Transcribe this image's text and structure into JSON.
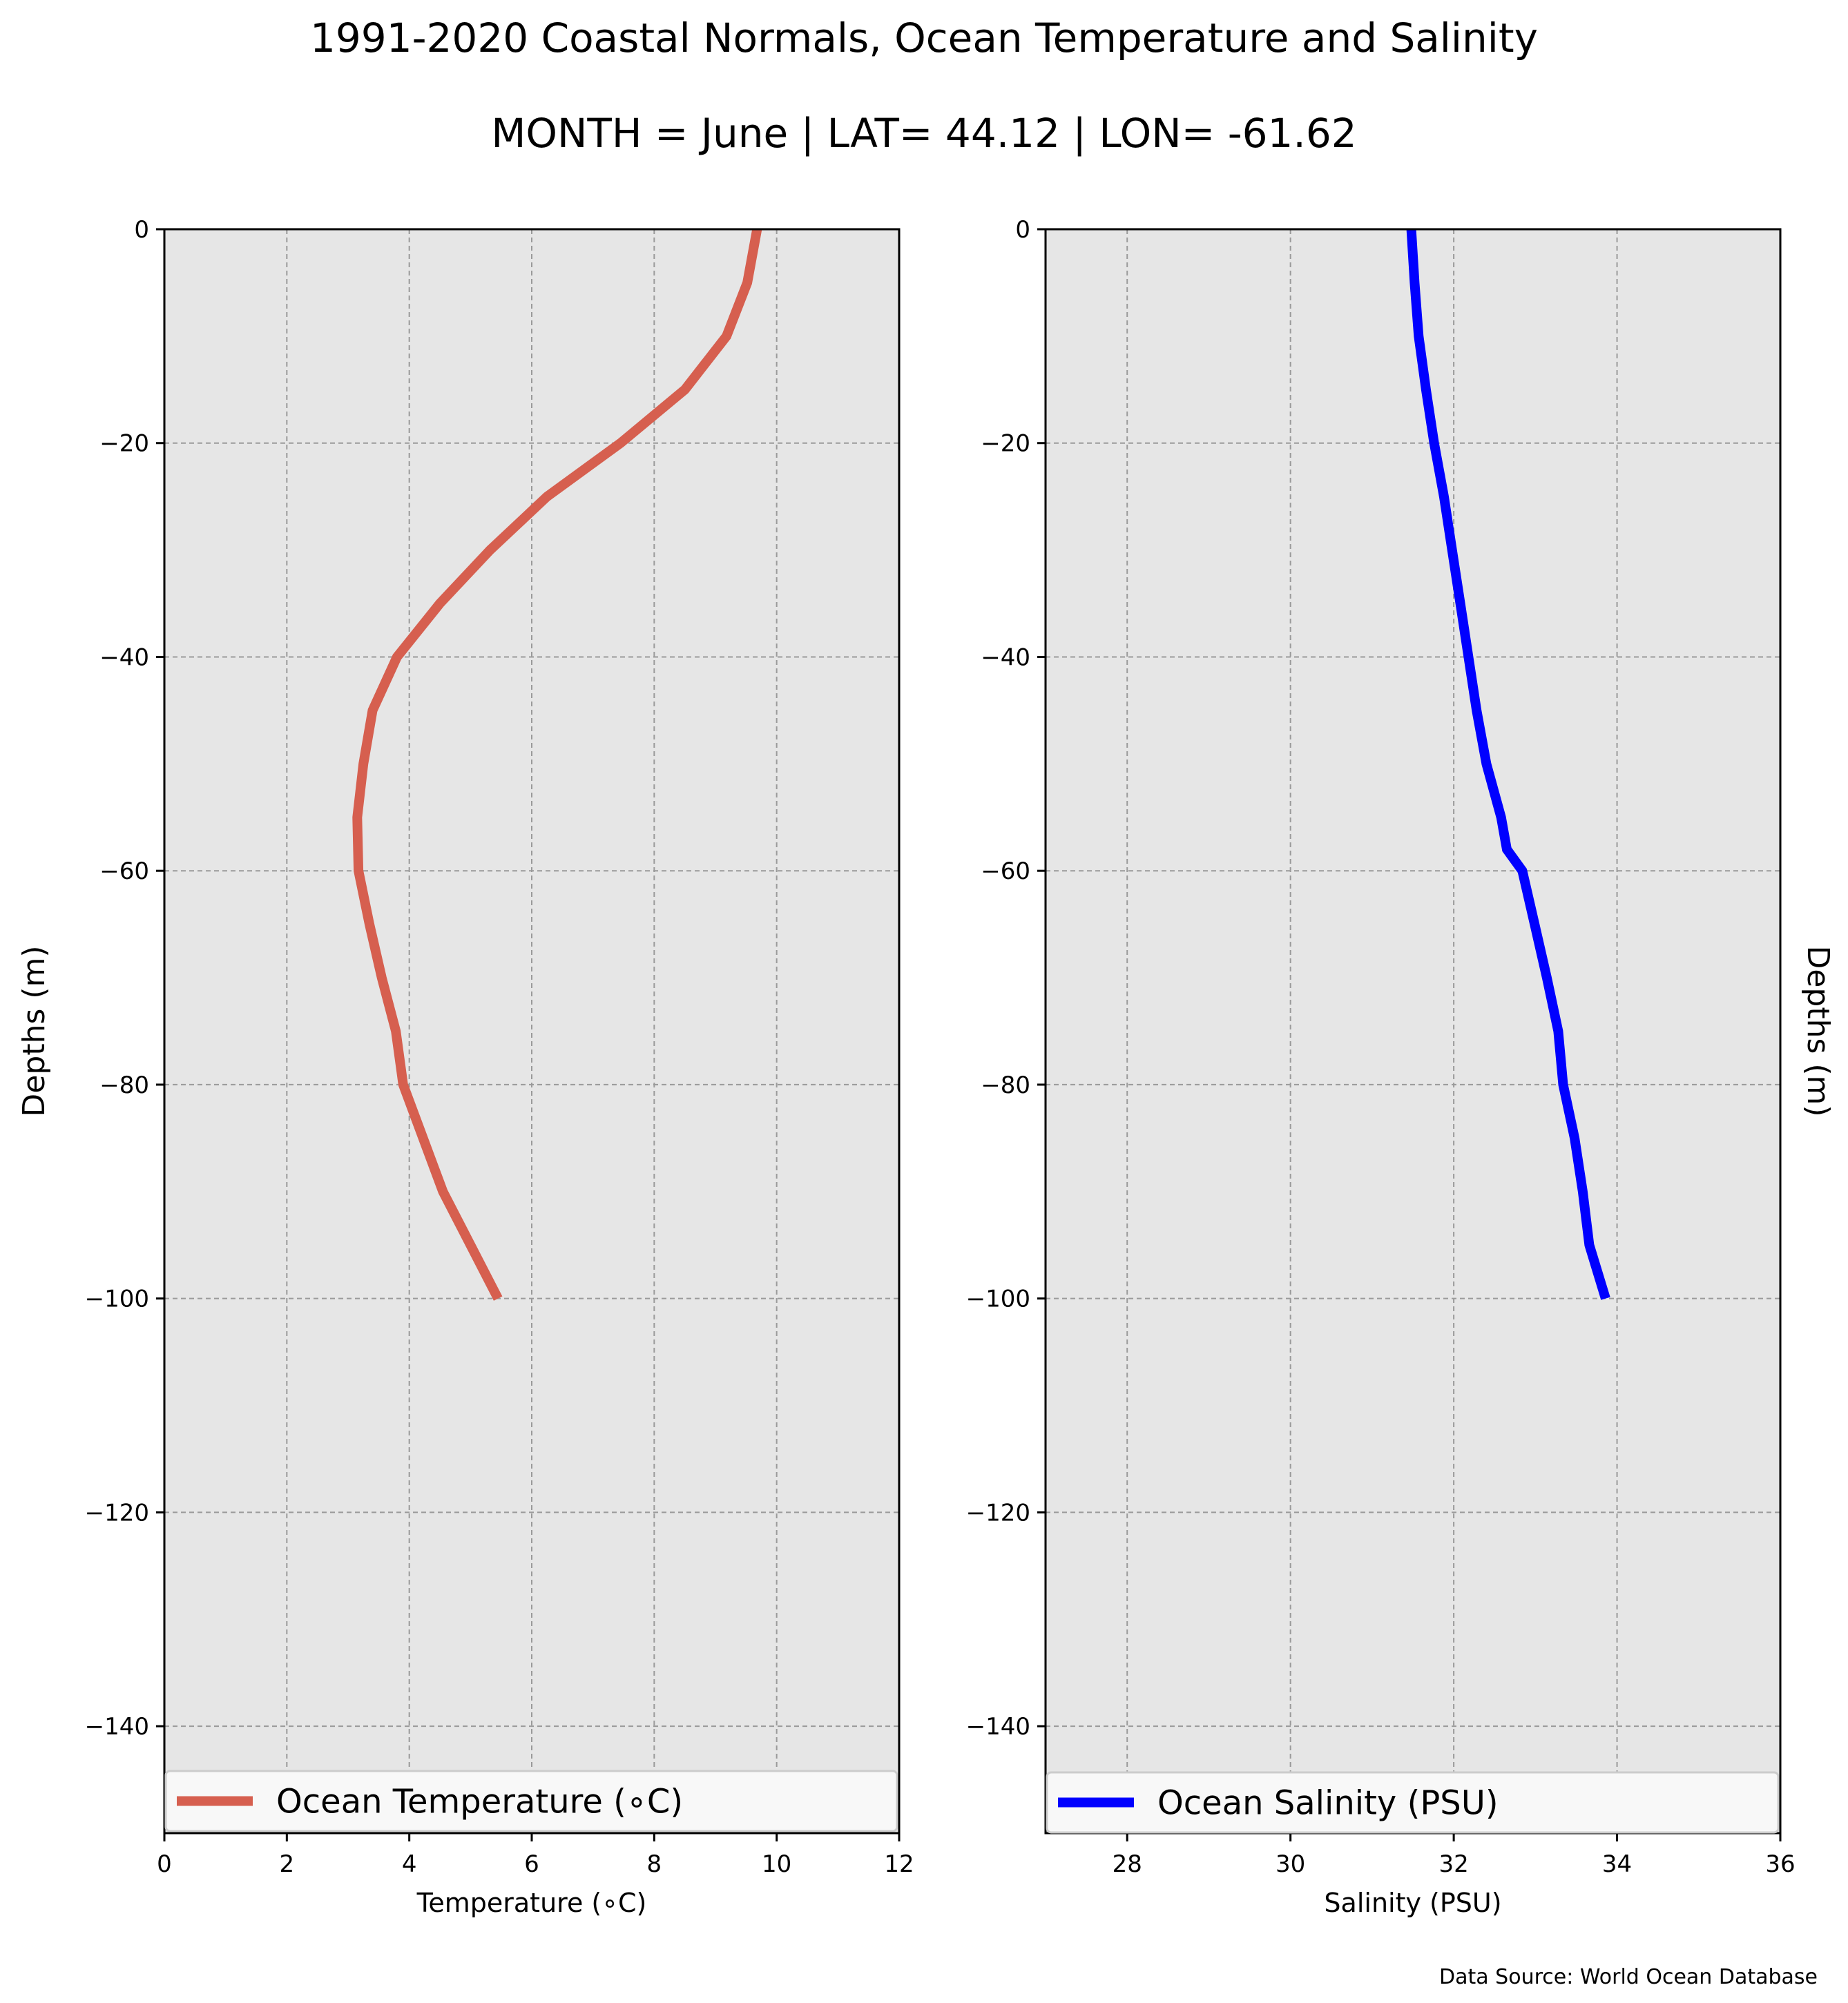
{
  "title": {
    "line1": "1991-2020 Coastal Normals, Ocean Temperature and Salinity",
    "line2": "MONTH = June | LAT= 44.12 | LON= -61.62"
  },
  "source_note": "Data Source: World Ocean Database",
  "colors": {
    "figure_bg": "#ffffff",
    "axes_bg": "#e6e6e6",
    "temperature": "#d65f4f",
    "salinity": "#0000ff",
    "legend_bg": "#f8f8f8",
    "legend_border": "#cccccc"
  },
  "chart_data": [
    {
      "type": "line",
      "title": "",
      "xlabel": "Temperature (∘C)",
      "ylabel": "Depths (m)",
      "ylabel_side": "left",
      "xlim": [
        0,
        12
      ],
      "ylim": [
        -150,
        0
      ],
      "xticks": [
        0,
        2,
        4,
        6,
        8,
        10,
        12
      ],
      "xtick_labels": [
        "0",
        "2",
        "4",
        "6",
        "8",
        "10",
        "12"
      ],
      "yticks": [
        0,
        -20,
        -40,
        -60,
        -80,
        -100,
        -120,
        -140
      ],
      "ytick_labels": [
        "0",
        "−20",
        "−40",
        "−60",
        "−80",
        "−100",
        "−120",
        "−140"
      ],
      "grid": true,
      "legend_position": "bottom",
      "series": [
        {
          "name": "Ocean Temperature (∘C)",
          "color": "#d65f4f",
          "x": [
            9.68,
            9.52,
            9.18,
            8.5,
            7.45,
            6.25,
            5.32,
            4.5,
            3.8,
            3.4,
            3.25,
            3.15,
            3.17,
            3.35,
            3.55,
            3.78,
            3.9,
            4.55,
            5.0,
            5.45
          ],
          "y": [
            0,
            -5,
            -10,
            -15,
            -20,
            -25,
            -30,
            -35,
            -40,
            -45,
            -50,
            -55,
            -60,
            -65,
            -70,
            -75,
            -80,
            -90,
            -95,
            -100
          ]
        }
      ]
    },
    {
      "type": "line",
      "title": "",
      "xlabel": "Salinity (PSU)",
      "ylabel": "Depths (m)",
      "ylabel_side": "right",
      "xlim": [
        27,
        36
      ],
      "ylim": [
        -150,
        0
      ],
      "xticks": [
        28,
        30,
        32,
        34,
        36
      ],
      "xtick_labels": [
        "28",
        "30",
        "32",
        "34",
        "36"
      ],
      "yticks": [
        0,
        -20,
        -40,
        -60,
        -80,
        -100,
        -120,
        -140
      ],
      "ytick_labels": [
        "0",
        "−20",
        "−40",
        "−60",
        "−80",
        "−100",
        "−120",
        "−140"
      ],
      "grid": true,
      "legend_position": "bottom",
      "series": [
        {
          "name": "Ocean Salinity (PSU)",
          "color": "#0000ff",
          "x": [
            31.48,
            31.52,
            31.57,
            31.66,
            31.76,
            31.88,
            31.98,
            32.08,
            32.18,
            32.28,
            32.4,
            32.58,
            32.65,
            32.84,
            32.99,
            33.14,
            33.28,
            33.34,
            33.48,
            33.58,
            33.66,
            33.86
          ],
          "y": [
            0,
            -5,
            -10,
            -15,
            -20,
            -25,
            -30,
            -35,
            -40,
            -45,
            -50,
            -55,
            -58,
            -60,
            -65,
            -70,
            -75,
            -80,
            -85,
            -90,
            -95,
            -100
          ]
        }
      ]
    }
  ]
}
